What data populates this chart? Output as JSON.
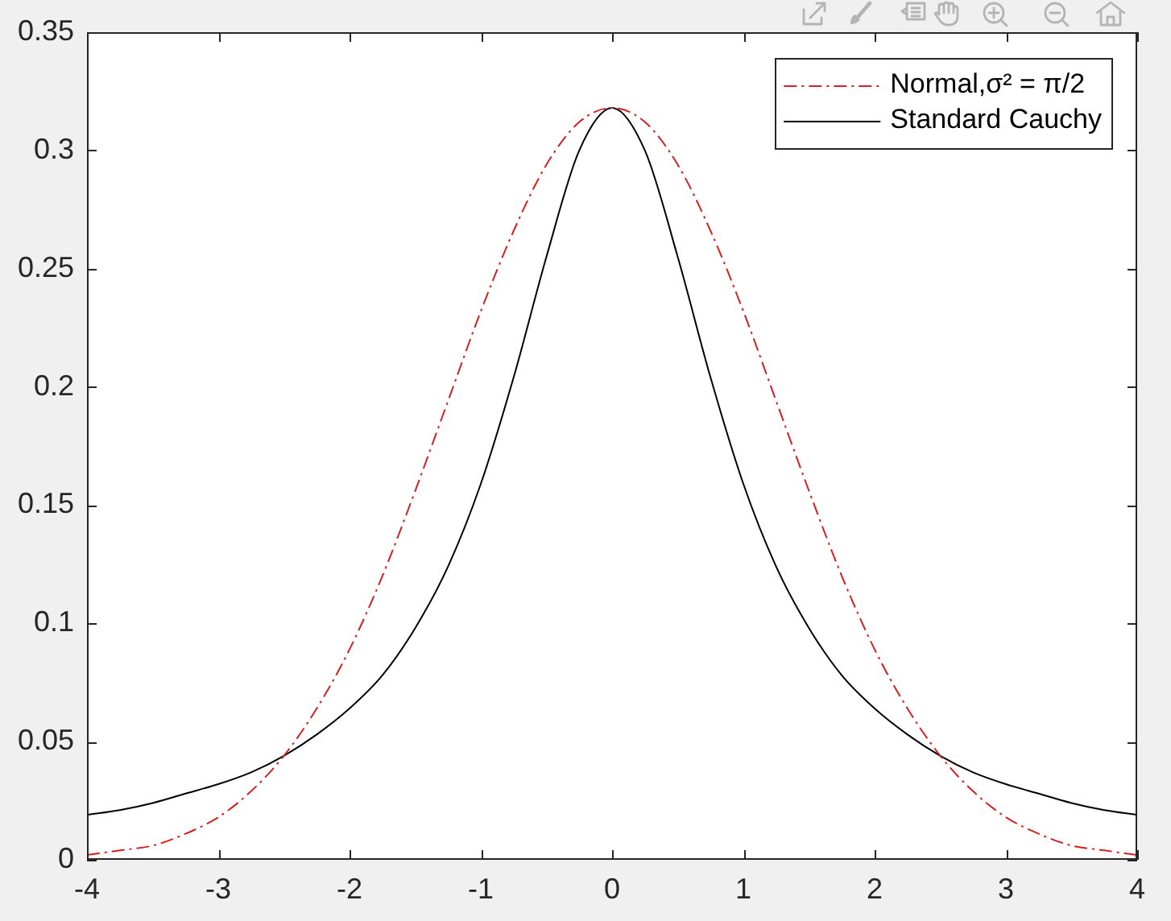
{
  "chart_data": {
    "type": "line",
    "x": [
      -4,
      -3.75,
      -3.5,
      -3.25,
      -3,
      -2.75,
      -2.5,
      -2.25,
      -2,
      -1.75,
      -1.5,
      -1.25,
      -1,
      -0.75,
      -0.5,
      -0.25,
      0,
      0.25,
      0.5,
      0.75,
      1,
      1.25,
      1.5,
      1.75,
      2,
      2.25,
      2.5,
      2.75,
      3,
      3.25,
      3.5,
      3.75,
      4
    ],
    "series": [
      {
        "name": "Normal,σ² = π/2",
        "color": "#d42020",
        "line_style": "dashdot",
        "values": [
          0.002,
          0.004,
          0.006,
          0.011,
          0.018,
          0.029,
          0.044,
          0.064,
          0.089,
          0.12,
          0.156,
          0.194,
          0.232,
          0.266,
          0.294,
          0.312,
          0.318,
          0.312,
          0.294,
          0.266,
          0.232,
          0.194,
          0.156,
          0.12,
          0.089,
          0.064,
          0.044,
          0.029,
          0.018,
          0.011,
          0.006,
          0.004,
          0.002
        ]
      },
      {
        "name": "Standard Cauchy",
        "color": "#000000",
        "line_style": "solid",
        "values": [
          0.019,
          0.021,
          0.024,
          0.028,
          0.032,
          0.037,
          0.044,
          0.053,
          0.064,
          0.078,
          0.098,
          0.124,
          0.159,
          0.204,
          0.255,
          0.3,
          0.318,
          0.3,
          0.255,
          0.204,
          0.159,
          0.124,
          0.098,
          0.078,
          0.064,
          0.053,
          0.044,
          0.037,
          0.032,
          0.028,
          0.024,
          0.021,
          0.019
        ]
      }
    ],
    "xlim": [
      -4,
      4
    ],
    "xticks": [
      -4,
      -3,
      -2,
      -1,
      0,
      1,
      2,
      3,
      4
    ],
    "ylim": [
      0,
      0.35
    ],
    "yticks": [
      0,
      0.05,
      0.1,
      0.15,
      0.2,
      0.25,
      0.3,
      0.35
    ],
    "legend": "top right"
  }
}
